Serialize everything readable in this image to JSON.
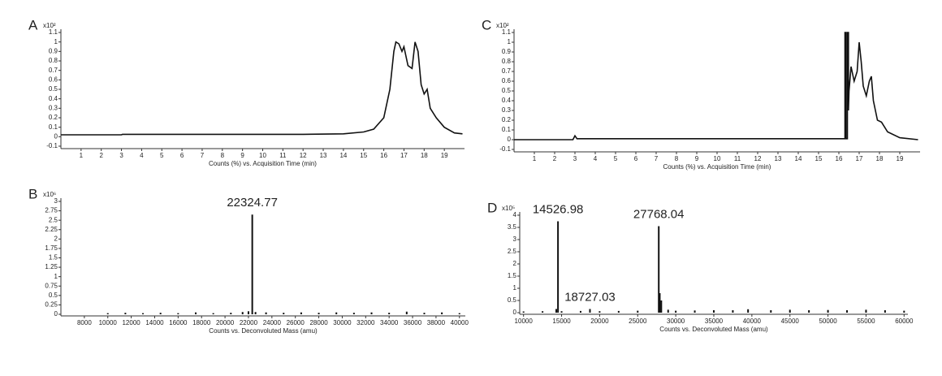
{
  "chart_data": [
    {
      "type": "line",
      "panel": "A",
      "y_multiplier": "x10²",
      "xlabel": "Counts (%) vs. Acquisition Time (min)",
      "color": "#111111",
      "x": [
        0,
        3,
        3.05,
        12,
        14,
        15,
        15.5,
        16,
        16.3,
        16.5,
        16.6,
        16.75,
        16.9,
        17.0,
        17.2,
        17.4,
        17.55,
        17.7,
        17.85,
        18.0,
        18.15,
        18.3,
        18.6,
        19,
        19.5,
        19.9
      ],
      "values": [
        0.02,
        0.02,
        0.025,
        0.025,
        0.03,
        0.05,
        0.08,
        0.2,
        0.5,
        0.9,
        1.0,
        0.98,
        0.9,
        0.95,
        0.75,
        0.72,
        1.0,
        0.9,
        0.55,
        0.45,
        0.5,
        0.3,
        0.2,
        0.1,
        0.04,
        0.03
      ],
      "xlim": [
        0,
        20
      ],
      "ylim": [
        -0.1,
        1.1
      ],
      "xticks": [
        1,
        2,
        3,
        4,
        5,
        6,
        7,
        8,
        9,
        10,
        11,
        12,
        13,
        14,
        15,
        16,
        17,
        18,
        19
      ],
      "yticks": [
        -0.1,
        0,
        0.1,
        0.2,
        0.3,
        0.4,
        0.5,
        0.6,
        0.7,
        0.8,
        0.9,
        1,
        1.1
      ]
    },
    {
      "type": "line",
      "panel": "C",
      "y_multiplier": "x10²",
      "xlabel": "Counts (%) vs. Acquisition Time (min)",
      "color": "#111111",
      "x": [
        0,
        2.9,
        3.0,
        3.1,
        3.3,
        16.2,
        16.3,
        16.3,
        16.35,
        16.35,
        16.42,
        16.42,
        16.47,
        16.47,
        16.5,
        16.6,
        16.75,
        16.9,
        17.0,
        17.1,
        17.2,
        17.35,
        17.5,
        17.6,
        17.7,
        17.9,
        18.1,
        18.4,
        19,
        19.9
      ],
      "values": [
        0,
        0,
        0.04,
        0.01,
        0.01,
        0.01,
        0.01,
        1.1,
        1.1,
        0.01,
        0.01,
        1.1,
        1.1,
        0.3,
        0.5,
        0.75,
        0.6,
        0.7,
        1.0,
        0.8,
        0.55,
        0.45,
        0.6,
        0.65,
        0.4,
        0.2,
        0.18,
        0.08,
        0.02,
        0
      ],
      "xlim": [
        0,
        20
      ],
      "ylim": [
        -0.1,
        1.1
      ],
      "xticks": [
        1,
        2,
        3,
        4,
        5,
        6,
        7,
        8,
        9,
        10,
        11,
        12,
        13,
        14,
        15,
        16,
        17,
        18,
        19
      ],
      "yticks": [
        -0.1,
        0,
        0.1,
        0.2,
        0.3,
        0.4,
        0.5,
        0.6,
        0.7,
        0.8,
        0.9,
        1,
        1.1
      ]
    },
    {
      "type": "spectrum",
      "panel": "B",
      "y_multiplier": "x10⁶",
      "xlabel": "Counts vs. Deconvoluted Mass (amu)",
      "color": "#111111",
      "x": [
        10000,
        11500,
        13000,
        14500,
        16000,
        17500,
        19000,
        20500,
        21500,
        22000,
        22324.77,
        22600,
        23500,
        25000,
        26500,
        28000,
        29500,
        31000,
        32500,
        34000,
        35500,
        37000,
        38500,
        40000
      ],
      "values": [
        0.03,
        0.04,
        0.03,
        0.04,
        0.03,
        0.05,
        0.03,
        0.04,
        0.06,
        0.08,
        2.65,
        0.06,
        0.05,
        0.04,
        0.05,
        0.04,
        0.05,
        0.04,
        0.05,
        0.04,
        0.07,
        0.04,
        0.05,
        0.03
      ],
      "peak_labels": [
        22324.77
      ],
      "xlim": [
        6000,
        40500
      ],
      "ylim": [
        0,
        3
      ],
      "xticks": [
        8000,
        10000,
        12000,
        14000,
        16000,
        18000,
        20000,
        22000,
        24000,
        26000,
        28000,
        30000,
        32000,
        34000,
        36000,
        38000,
        40000
      ],
      "yticks": [
        0,
        0.25,
        0.5,
        0.75,
        1,
        1.25,
        1.5,
        1.75,
        2,
        2.25,
        2.5,
        2.75,
        3
      ]
    },
    {
      "type": "spectrum",
      "panel": "D",
      "y_multiplier": "x10⁵",
      "xlabel": "Counts vs. Deconvoluted Mass (amu)",
      "color": "#111111",
      "x": [
        10000,
        12500,
        14300,
        14526.98,
        15000,
        17500,
        18727.03,
        20000,
        22500,
        25000,
        27768.04,
        27900,
        28100,
        29000,
        30000,
        32500,
        35000,
        37500,
        39500,
        42500,
        45000,
        47500,
        50000,
        52500,
        55000,
        57500,
        60000
      ],
      "values": [
        0.05,
        0.06,
        0.15,
        3.75,
        0.06,
        0.07,
        0.15,
        0.06,
        0.07,
        0.08,
        3.55,
        0.8,
        0.5,
        0.12,
        0.08,
        0.09,
        0.1,
        0.1,
        0.14,
        0.1,
        0.12,
        0.1,
        0.11,
        0.1,
        0.12,
        0.1,
        0.08
      ],
      "peak_labels": [
        14526.98,
        18727.03,
        27768.04
      ],
      "xlim": [
        9500,
        60500
      ],
      "ylim": [
        0,
        4
      ],
      "xticks": [
        10000,
        15000,
        20000,
        25000,
        30000,
        35000,
        40000,
        45000,
        50000,
        55000,
        60000
      ],
      "yticks": [
        0,
        0.5,
        1,
        1.5,
        2,
        2.5,
        3,
        3.5,
        4
      ]
    }
  ]
}
